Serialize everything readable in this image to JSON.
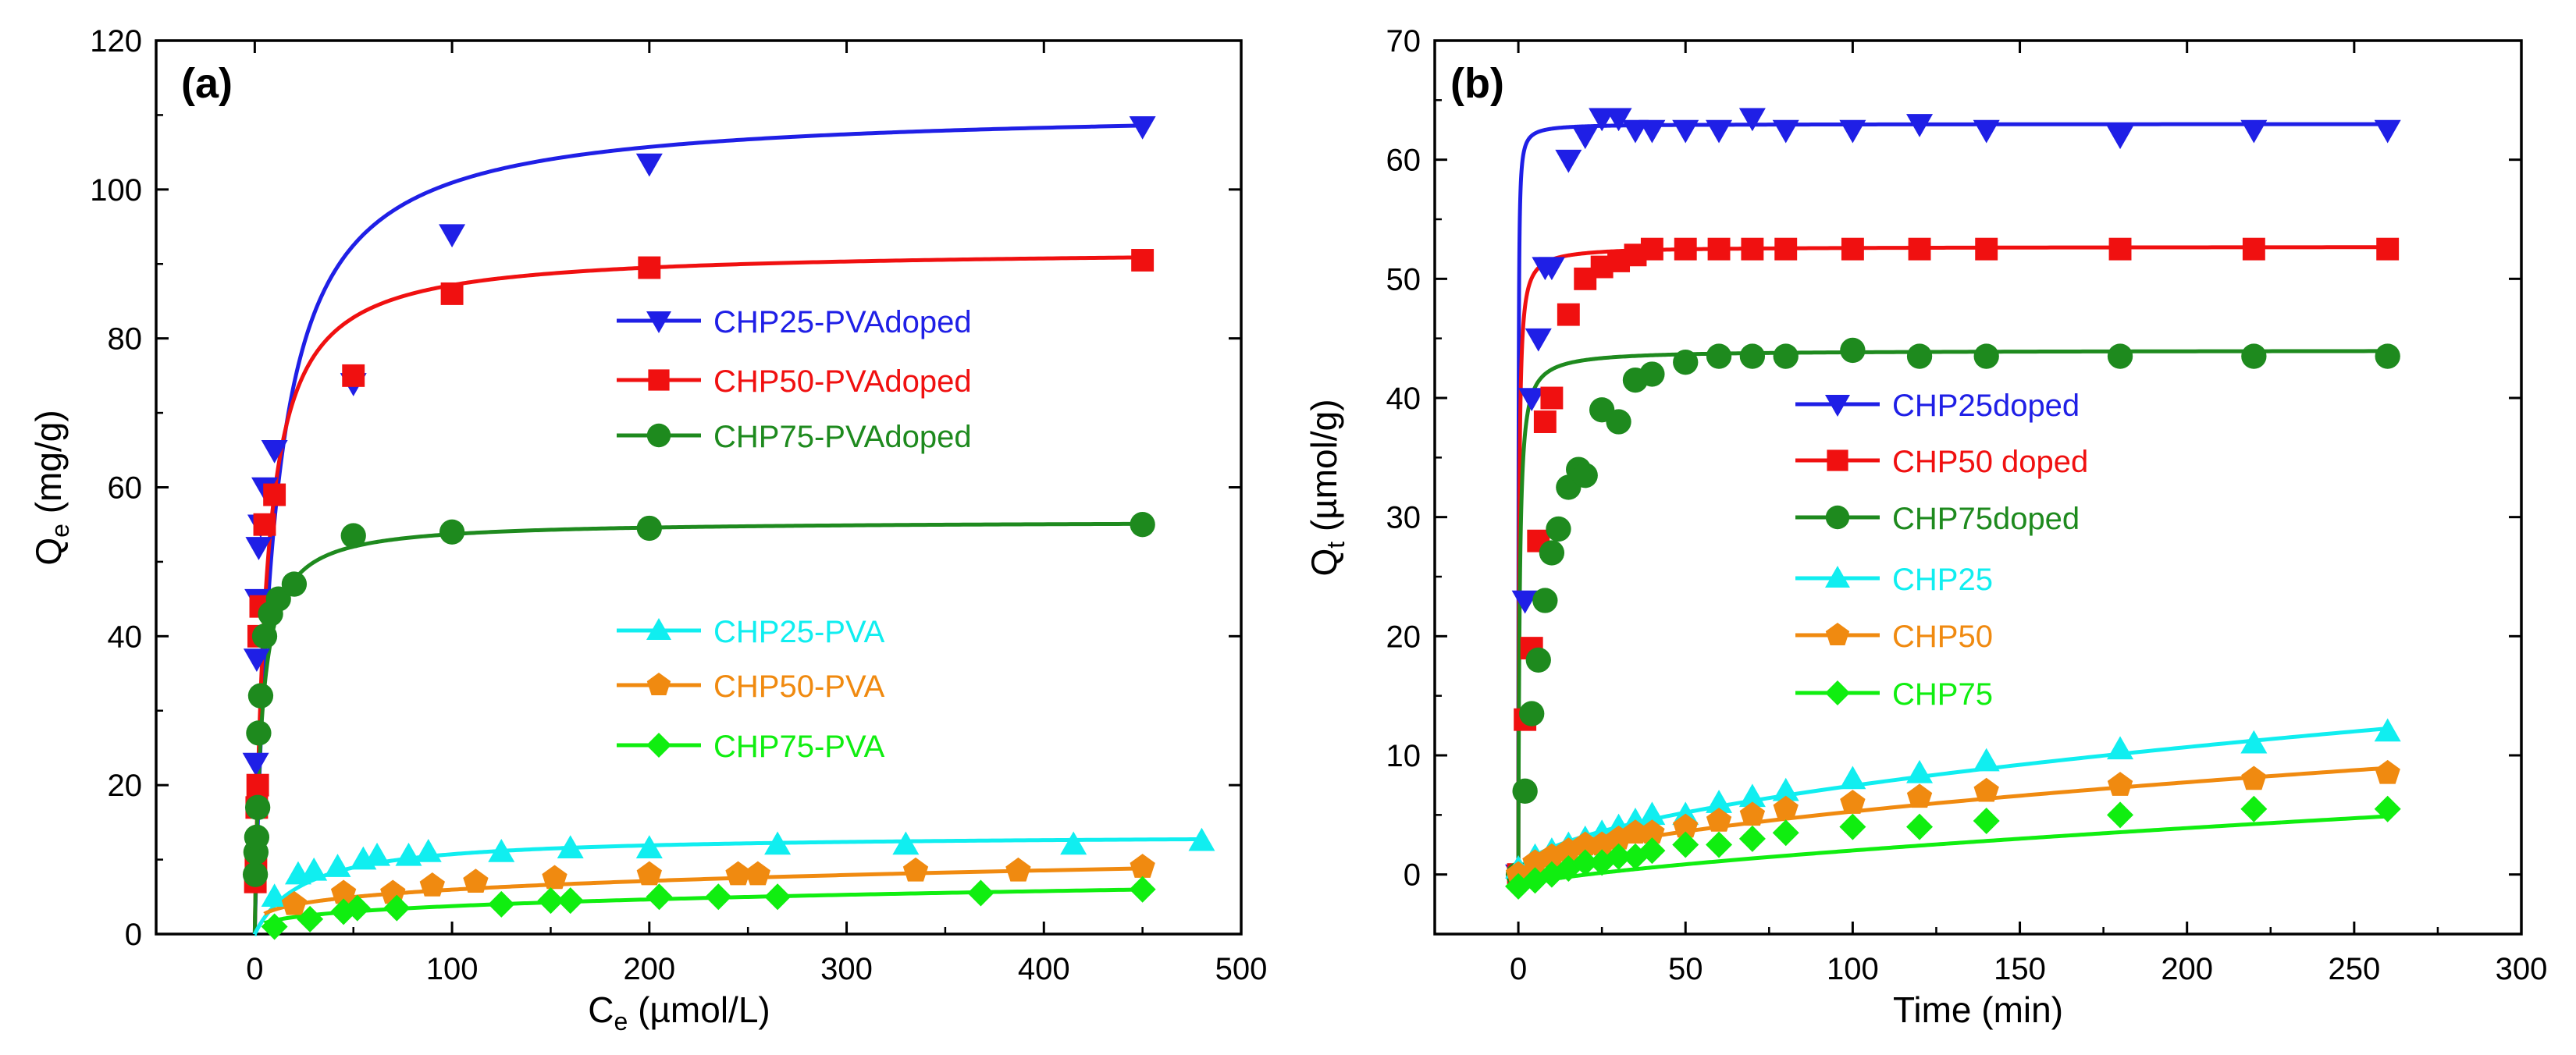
{
  "colors": {
    "blue": "#1f1fe6",
    "red": "#f01010",
    "darkgreen": "#1e8a1e",
    "cyan": "#10eef0",
    "orange": "#f08a10",
    "lime": "#10ee10",
    "axis": "#000000"
  },
  "chart_data": [
    {
      "type": "scatter",
      "panel_label": "(a)",
      "xlabel_main": "C",
      "xlabel_sub": "e",
      "xlabel_rest": " (µmol/L)",
      "ylabel_main": "Q",
      "ylabel_sub": "e",
      "ylabel_rest": " (mg/g)",
      "xlim": [
        -50,
        500
      ],
      "ylim": [
        0,
        120
      ],
      "xticks": [
        0,
        100,
        200,
        300,
        400,
        500
      ],
      "yticks": [
        0,
        20,
        40,
        60,
        80,
        100,
        120
      ],
      "legend": [
        "CHP25-PVAdoped",
        "CHP50-PVAdoped",
        "CHP75-PVAdoped",
        "CHP25-PVA",
        "CHP50-PVA",
        "CHP75-PVA"
      ],
      "series": [
        {
          "name": "CHP25-PVAdoped",
          "color": "blue",
          "marker": "tri-down",
          "x": [
            0.5,
            1,
            1.5,
            2,
            3,
            5,
            10,
            50,
            100,
            200,
            450
          ],
          "y": [
            23,
            37,
            45,
            52,
            55,
            60,
            65,
            74,
            94,
            103.5,
            108.5
          ],
          "fit": {
            "model": "langmuir",
            "qmax": 111,
            "K": 0.1,
            "xmax": 450
          }
        },
        {
          "name": "CHP50-PVAdoped",
          "color": "red",
          "marker": "square",
          "x": [
            0.3,
            0.6,
            1,
            1.5,
            2,
            3,
            5,
            10,
            50,
            100,
            200,
            450
          ],
          "y": [
            7,
            10,
            17,
            20,
            40,
            44,
            55,
            59,
            75,
            86,
            89.5,
            90.5
          ],
          "fit": {
            "model": "langmuir",
            "qmax": 92,
            "K": 0.18,
            "xmax": 450
          }
        },
        {
          "name": "CHP75-PVAdoped",
          "color": "darkgreen",
          "marker": "circle",
          "x": [
            0.3,
            0.6,
            1,
            1.5,
            2,
            3,
            5,
            8,
            12,
            20,
            50,
            100,
            200,
            450
          ],
          "y": [
            8,
            11,
            13,
            17,
            27,
            32,
            40,
            43,
            45,
            47,
            53.5,
            54,
            54.5,
            55
          ],
          "fit": {
            "model": "langmuir",
            "qmax": 55.5,
            "K": 0.3,
            "xmax": 450
          }
        },
        {
          "name": "CHP25-PVA",
          "color": "cyan",
          "marker": "tri-up",
          "x": [
            10,
            22,
            30,
            42,
            55,
            62,
            78,
            88,
            125,
            160,
            200,
            265,
            330,
            415,
            480
          ],
          "y": [
            5,
            8,
            8.5,
            9,
            10,
            10.5,
            10.5,
            11,
            11,
            11.5,
            11.5,
            12,
            12,
            12,
            12.5
          ],
          "fit": {
            "model": "langmuir",
            "qmax": 13.4,
            "K": 0.04,
            "xmax": 480
          }
        },
        {
          "name": "CHP50-PVA",
          "color": "orange",
          "marker": "pentagon",
          "x": [
            20,
            45,
            70,
            90,
            112,
            152,
            200,
            245,
            255,
            335,
            387,
            450
          ],
          "y": [
            4,
            5.5,
            5.5,
            6.5,
            7,
            7.5,
            8,
            8,
            8,
            8.5,
            8.5,
            9
          ],
          "fit": {
            "model": "freundlich",
            "a": 1.8,
            "n": 0.26,
            "xmin": 5,
            "xmax": 450
          }
        },
        {
          "name": "CHP75-PVA",
          "color": "lime",
          "marker": "diamond",
          "x": [
            10,
            28,
            45,
            52,
            72,
            125,
            150,
            160,
            205,
            235,
            265,
            368,
            450
          ],
          "y": [
            1,
            2,
            3,
            3.5,
            3.5,
            4,
            4.5,
            4.5,
            5,
            5,
            5,
            5.5,
            6
          ],
          "fit": {
            "model": "freundlich",
            "a": 0.9,
            "n": 0.31,
            "xmin": 5,
            "xmax": 450
          }
        }
      ]
    },
    {
      "type": "scatter",
      "panel_label": "(b)",
      "xlabel_main": "Time (min)",
      "xlabel_sub": "",
      "xlabel_rest": "",
      "ylabel_main": "Q",
      "ylabel_sub": "t",
      "ylabel_rest": " (µmol/g)",
      "xlim": [
        -25,
        300
      ],
      "ylim": [
        -5,
        70
      ],
      "xticks": [
        0,
        50,
        100,
        150,
        200,
        250,
        300
      ],
      "yticks": [
        0,
        10,
        20,
        30,
        40,
        50,
        60,
        70
      ],
      "legend": [
        "CHP25doped",
        "CHP50 doped",
        "CHP75doped",
        "CHP25",
        "CHP50",
        "CHP75"
      ],
      "series": [
        {
          "name": "CHP25doped",
          "color": "blue",
          "marker": "tri-down",
          "x": [
            0,
            2,
            4,
            6,
            8,
            10,
            15,
            20,
            25,
            30,
            35,
            40,
            50,
            60,
            70,
            80,
            100,
            120,
            140,
            180,
            220,
            260
          ],
          "y": [
            0,
            23,
            40,
            45,
            51,
            51,
            60,
            62,
            63.5,
            63.5,
            62.5,
            62.5,
            62.5,
            62.5,
            63.5,
            62.5,
            62.5,
            63,
            62.5,
            62,
            62.5,
            62.5
          ],
          "fit": {
            "model": "pso",
            "qe": 63,
            "k": 0.25,
            "xmax": 260
          }
        },
        {
          "name": "CHP50 doped",
          "color": "red",
          "marker": "square",
          "x": [
            0,
            2,
            4,
            6,
            8,
            10,
            15,
            20,
            25,
            30,
            35,
            40,
            50,
            60,
            70,
            80,
            100,
            120,
            140,
            180,
            220,
            260
          ],
          "y": [
            0,
            13,
            19,
            28,
            38,
            40,
            47,
            50,
            51,
            51.5,
            52,
            52.5,
            52.5,
            52.5,
            52.5,
            52.5,
            52.5,
            52.5,
            52.5,
            52.5,
            52.5,
            52.5
          ],
          "fit": {
            "model": "pso",
            "qe": 52.7,
            "k": 0.09,
            "xmax": 260
          }
        },
        {
          "name": "CHP75doped",
          "color": "darkgreen",
          "marker": "circle",
          "x": [
            0,
            2,
            4,
            6,
            8,
            10,
            12,
            15,
            18,
            20,
            25,
            30,
            35,
            40,
            50,
            60,
            70,
            80,
            100,
            120,
            140,
            180,
            220,
            260
          ],
          "y": [
            0,
            7,
            13.5,
            18,
            23,
            27,
            29,
            32.5,
            34,
            33.5,
            39,
            38,
            41.5,
            42,
            43,
            43.5,
            43.5,
            43.5,
            44,
            43.5,
            43.5,
            43.5,
            43.5,
            43.5
          ],
          "fit": {
            "model": "pso",
            "qe": 44,
            "k": 0.06,
            "xmax": 260
          }
        },
        {
          "name": "CHP25",
          "color": "cyan",
          "marker": "tri-up",
          "x": [
            0,
            5,
            10,
            15,
            20,
            25,
            30,
            35,
            40,
            50,
            60,
            70,
            80,
            100,
            120,
            140,
            180,
            220,
            260
          ],
          "y": [
            0.5,
            1.5,
            2,
            2.5,
            3,
            3.5,
            4,
            4.5,
            5,
            5,
            6,
            6.5,
            7,
            8,
            8.5,
            9.5,
            10.5,
            11,
            12
          ],
          "fit": {
            "model": "linear-ish",
            "a": 0.68,
            "n": 0.52,
            "xmax": 260
          }
        },
        {
          "name": "CHP50",
          "color": "orange",
          "marker": "pentagon",
          "x": [
            0,
            5,
            10,
            15,
            20,
            25,
            30,
            35,
            40,
            50,
            60,
            70,
            80,
            100,
            120,
            140,
            180,
            220,
            260
          ],
          "y": [
            0,
            1,
            1.5,
            2,
            2.5,
            2.5,
            3,
            3.5,
            3.5,
            4,
            4.5,
            5,
            5.5,
            6,
            6.5,
            7,
            7.5,
            8,
            8.5
          ],
          "fit": {
            "model": "linear-ish",
            "a": 0.42,
            "n": 0.55,
            "xmax": 260
          }
        },
        {
          "name": "CHP75",
          "color": "lime",
          "marker": "diamond",
          "x": [
            0,
            5,
            10,
            15,
            20,
            25,
            30,
            35,
            40,
            50,
            60,
            70,
            80,
            100,
            120,
            140,
            180,
            220,
            260
          ],
          "y": [
            -1,
            -0.5,
            0,
            0.5,
            1,
            1,
            1.5,
            1.5,
            2,
            2.5,
            2.5,
            3,
            3.5,
            4,
            4,
            4.5,
            5,
            5.5,
            5.5
          ],
          "fit": {
            "model": "linear-ish",
            "a": 0.12,
            "n": 0.7,
            "xmax": 260
          }
        }
      ]
    }
  ]
}
